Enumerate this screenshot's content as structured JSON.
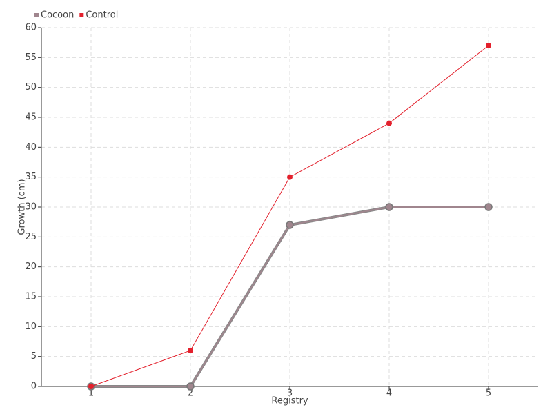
{
  "chart_data": {
    "type": "line",
    "x_label": "Registry",
    "y_label": "Growth (cm)",
    "x": [
      1,
      2,
      3,
      4,
      5
    ],
    "series": [
      {
        "name": "Cocoon",
        "color": "#a0868e",
        "values": [
          0,
          0,
          27,
          30,
          30
        ]
      },
      {
        "name": "Control",
        "color": "#e3202c",
        "values": [
          0,
          6,
          35,
          44,
          57
        ]
      }
    ],
    "xlim": [
      0.5,
      5.5
    ],
    "xticks": [
      1,
      2,
      3,
      4,
      5
    ],
    "ylim": [
      0,
      60
    ],
    "yticks": [
      0,
      5,
      10,
      15,
      20,
      25,
      30,
      35,
      40,
      45,
      50,
      55,
      60
    ],
    "grid": true,
    "legend": "top-left"
  }
}
